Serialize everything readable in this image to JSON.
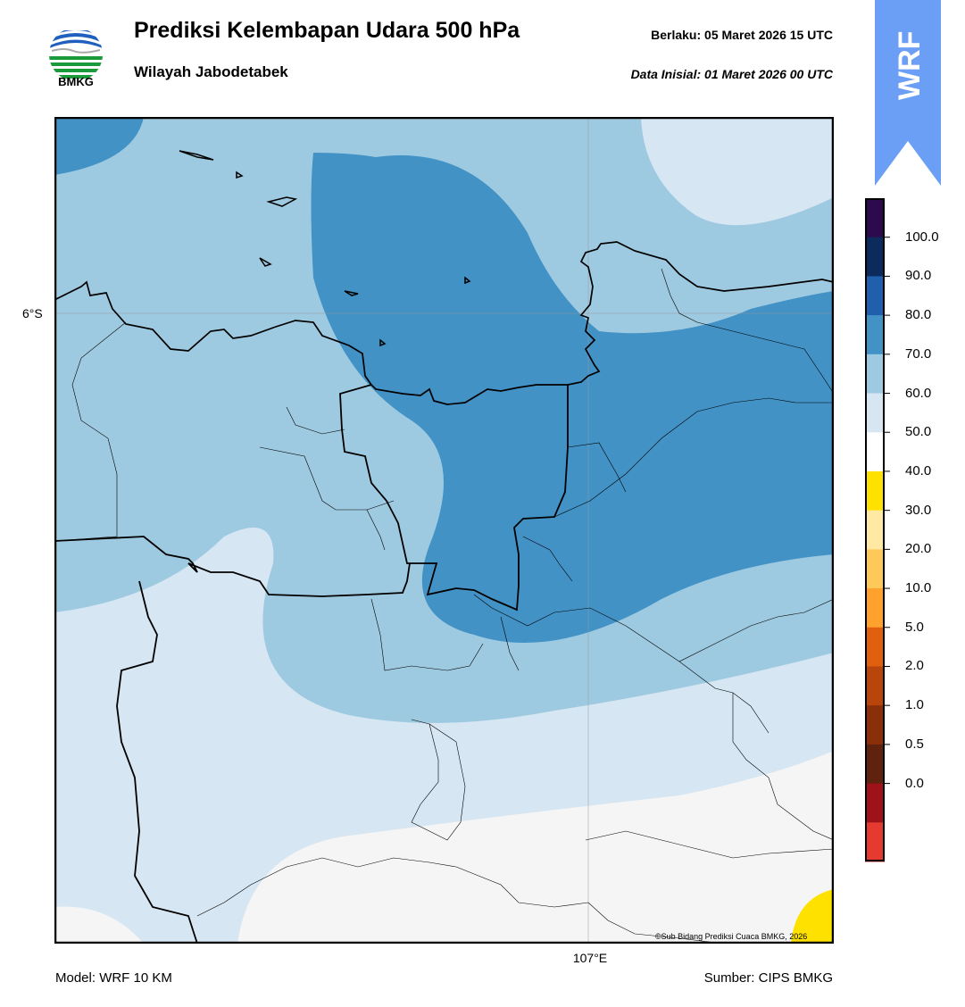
{
  "header": {
    "title": "Prediksi Kelembapan Udara 500 hPa",
    "subtitle": "Wilayah Jabodetabek",
    "valid": "Berlaku:  05 Maret 2026 15 UTC",
    "init": "Data Inisial:  01 Maret 2026 00 UTC"
  },
  "logo": {
    "text": "BMKG",
    "icon": "bmkg-logo"
  },
  "badge": {
    "text": "WRF",
    "color": "#6a9ff5"
  },
  "map": {
    "lat_label": "6°S",
    "lon_label": "107°E",
    "credit": "©Sub Bidang Prediksi Cuaca BMKG, 2026"
  },
  "footer": {
    "model": "Model: WRF 10 KM",
    "source": "Sumber: CIPS BMKG"
  },
  "colorbar": {
    "labels": [
      "100.0",
      "90.0",
      "80.0",
      "70.0",
      "60.0",
      "50.0",
      "40.0",
      "30.0",
      "20.0",
      "10.0",
      "5.0",
      "2.0",
      "1.0",
      "0.5",
      "0.0"
    ],
    "colors": [
      "#2d0a4d",
      "#0c2a5c",
      "#1f5fad",
      "#4292c6",
      "#9ecae1",
      "#d6e6f2",
      "#ffffff",
      "#ffe100",
      "#ffe9a3",
      "#ffc95a",
      "#ffa12d",
      "#e0600f",
      "#b8450c",
      "#8b2e0a",
      "#5e220e",
      "#a0121a",
      "#e43a30"
    ]
  }
}
